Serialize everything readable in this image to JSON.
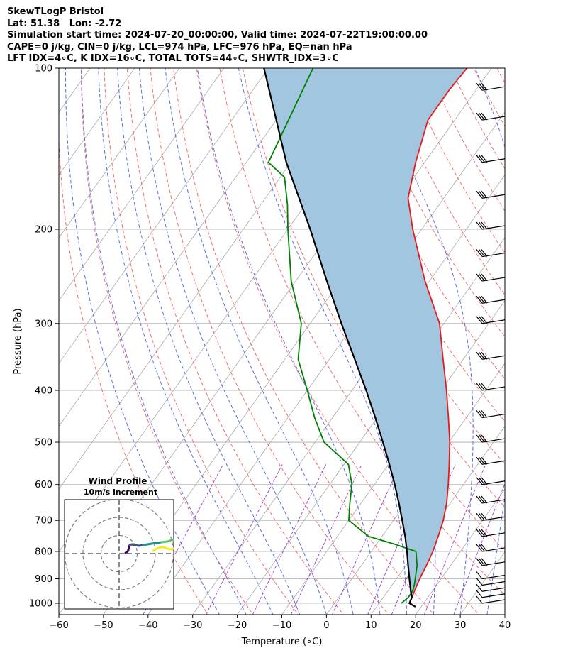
{
  "header": {
    "lines": [
      "SkewTLogP Bristol",
      "Lat: 51.38   Lon: -2.72",
      "Simulation start time: 2024-07-20_00:00:00, Valid time: 2024-07-22T19:00:00.00",
      "CAPE=0 j/kg, CIN=0 j/kg, LCL=974 hPa, LFC=976 hPa, EQ=nan hPa",
      "LFT IDX=4∘C, K IDX=16∘C, TOTAL TOTS=44∘C, SHWTR_IDX=3∘C"
    ]
  },
  "chart_data": [
    {
      "type": "line",
      "subtype": "skew-t log-p",
      "xlabel": "Temperature (∘C)",
      "ylabel": "Pressure (hPa)",
      "xlim": [
        -60,
        40
      ],
      "ylim": [
        1050,
        100
      ],
      "yscale": "log",
      "x_ticks": [
        "−60",
        "−50",
        "−40",
        "−30",
        "−20",
        "−10",
        "0",
        "10",
        "20",
        "30",
        "40"
      ],
      "y_ticks": [
        "100",
        "200",
        "300",
        "400",
        "500",
        "600",
        "700",
        "800",
        "900",
        "1000"
      ],
      "y_tick_values": [
        100,
        200,
        300,
        400,
        500,
        600,
        700,
        800,
        900,
        1000
      ],
      "grid": true,
      "colors": {
        "temperature": "#e41a1c",
        "dewpoint": "#008000",
        "parcel": "#000000",
        "cape_fill": "#a2c6e0",
        "dry_adiabats": "#f07070",
        "moist_adiabats": "#5a6fe6",
        "mixing_ratio": "#9a3fd0",
        "isotherms": "#a9a9a9"
      },
      "series": [
        {
          "role": "temperature",
          "points": [
            [
              1000,
              16.8
            ],
            [
              975,
              16.4
            ],
            [
              950,
              16.0
            ],
            [
              925,
              15.6
            ],
            [
              900,
              15.2
            ],
            [
              850,
              14.6
            ],
            [
              800,
              13.8
            ],
            [
              750,
              12.6
            ],
            [
              700,
              11.2
            ],
            [
              650,
              9.2
            ],
            [
              600,
              6.6
            ],
            [
              550,
              3.6
            ],
            [
              500,
              0.2
            ],
            [
              450,
              -4.0
            ],
            [
              400,
              -8.8
            ],
            [
              350,
              -14.5
            ],
            [
              300,
              -21.0
            ],
            [
              250,
              -31.0
            ],
            [
              200,
              -42.0
            ],
            [
              175,
              -48.0
            ],
            [
              150,
              -52.0
            ],
            [
              125,
              -56.0
            ],
            [
              110,
              -56.0
            ],
            [
              100,
              -55.5
            ]
          ]
        },
        {
          "role": "dewpoint",
          "points": [
            [
              1000,
              15.0
            ],
            [
              975,
              15.6
            ],
            [
              950,
              15.6
            ],
            [
              925,
              15.0
            ],
            [
              900,
              14.2
            ],
            [
              850,
              12.5
            ],
            [
              800,
              10.0
            ],
            [
              775,
              4.0
            ],
            [
              750,
              -3.0
            ],
            [
              700,
              -10.0
            ],
            [
              650,
              -12.5
            ],
            [
              600,
              -15.0
            ],
            [
              550,
              -19.0
            ],
            [
              500,
              -28.0
            ],
            [
              450,
              -34.0
            ],
            [
              400,
              -40.0
            ],
            [
              350,
              -47.0
            ],
            [
              300,
              -52.0
            ],
            [
              250,
              -61.0
            ],
            [
              200,
              -70.0
            ],
            [
              180,
              -74.0
            ],
            [
              160,
              -79.0
            ],
            [
              150,
              -85.0
            ],
            [
              100,
              -90.0
            ]
          ]
        },
        {
          "role": "parcel",
          "points": [
            [
              1015,
              18.7
            ],
            [
              1000,
              16.8
            ],
            [
              975,
              16.4
            ],
            [
              950,
              15.2
            ],
            [
              900,
              12.9
            ],
            [
              850,
              10.5
            ],
            [
              800,
              8.0
            ],
            [
              750,
              5.2
            ],
            [
              700,
              2.0
            ],
            [
              650,
              -1.5
            ],
            [
              600,
              -5.4
            ],
            [
              550,
              -9.8
            ],
            [
              500,
              -14.8
            ],
            [
              450,
              -20.4
            ],
            [
              400,
              -26.8
            ],
            [
              350,
              -34.3
            ],
            [
              300,
              -43.0
            ],
            [
              250,
              -53.0
            ],
            [
              200,
              -65.0
            ],
            [
              150,
              -81.0
            ],
            [
              100,
              -101.0
            ]
          ]
        }
      ],
      "wind_barbs": {
        "levels_hpa": [
          1000,
          975,
          950,
          925,
          900,
          850,
          800,
          750,
          700,
          650,
          600,
          550,
          500,
          450,
          400,
          350,
          300,
          275,
          250,
          225,
          200,
          175,
          150,
          125,
          110
        ]
      }
    },
    {
      "type": "scatter",
      "subtype": "hodograph",
      "title": "Wind Profile",
      "subtitle": "10m/s increment",
      "ring_step_ms": 10,
      "rings": 3,
      "colors": [
        "#44015a",
        "#3b528b",
        "#21918c",
        "#5ec962",
        "#fde725"
      ]
    }
  ]
}
